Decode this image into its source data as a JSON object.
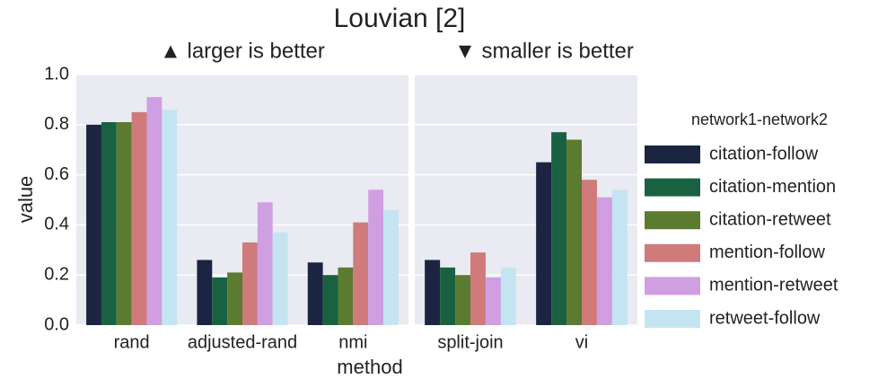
{
  "chart_data": [
    {
      "type": "bar",
      "title": "Louvian [2]",
      "annotation": "▲ larger is better",
      "xlabel": "method",
      "ylabel": "value",
      "categories": [
        "rand",
        "adjusted-rand",
        "nmi"
      ],
      "series": [
        {
          "color": "#1b2541",
          "values": [
            0.8,
            0.26,
            0.25
          ]
        },
        {
          "color": "#1a6142",
          "values": [
            0.81,
            0.19,
            0.2
          ]
        },
        {
          "color": "#5b7b31",
          "values": [
            0.81,
            0.21,
            0.23
          ]
        },
        {
          "color": "#cf7b7b",
          "values": [
            0.85,
            0.33,
            0.41
          ]
        },
        {
          "color": "#cf9fe1",
          "values": [
            0.91,
            0.49,
            0.54
          ]
        },
        {
          "color": "#c5e4f1",
          "values": [
            0.86,
            0.37,
            0.46
          ]
        }
      ],
      "ylim": [
        0,
        1
      ],
      "yticks": [
        {
          "value": 0,
          "label": "0.0"
        },
        0.2,
        0.4,
        0.6,
        0.8,
        {
          "value": 1,
          "label": "1.0"
        }
      ],
      "grid": true
    },
    {
      "type": "bar",
      "annotation": "▼ smaller is better",
      "legend_title": "network1-network2",
      "categories": [
        "split-join",
        "vi"
      ],
      "series": [
        {
          "name": "citation-follow",
          "color": "#1b2541",
          "values": [
            0.26,
            0.65
          ]
        },
        {
          "name": "citation-mention",
          "color": "#1a6142",
          "values": [
            0.23,
            0.77
          ]
        },
        {
          "name": "citation-retweet",
          "color": "#5b7b31",
          "values": [
            0.2,
            0.74
          ]
        },
        {
          "name": "mention-follow",
          "color": "#cf7b7b",
          "values": [
            0.29,
            0.58
          ]
        },
        {
          "name": "mention-retweet",
          "color": "#cf9fe1",
          "values": [
            0.19,
            0.51
          ]
        },
        {
          "name": "retweet-follow",
          "color": "#c5e4f1",
          "values": [
            0.23,
            0.54
          ]
        }
      ],
      "ylim": [
        0,
        1
      ],
      "yticks": [
        0,
        0.2,
        0.4,
        0.6,
        0.8,
        1
      ],
      "grid": true
    }
  ]
}
